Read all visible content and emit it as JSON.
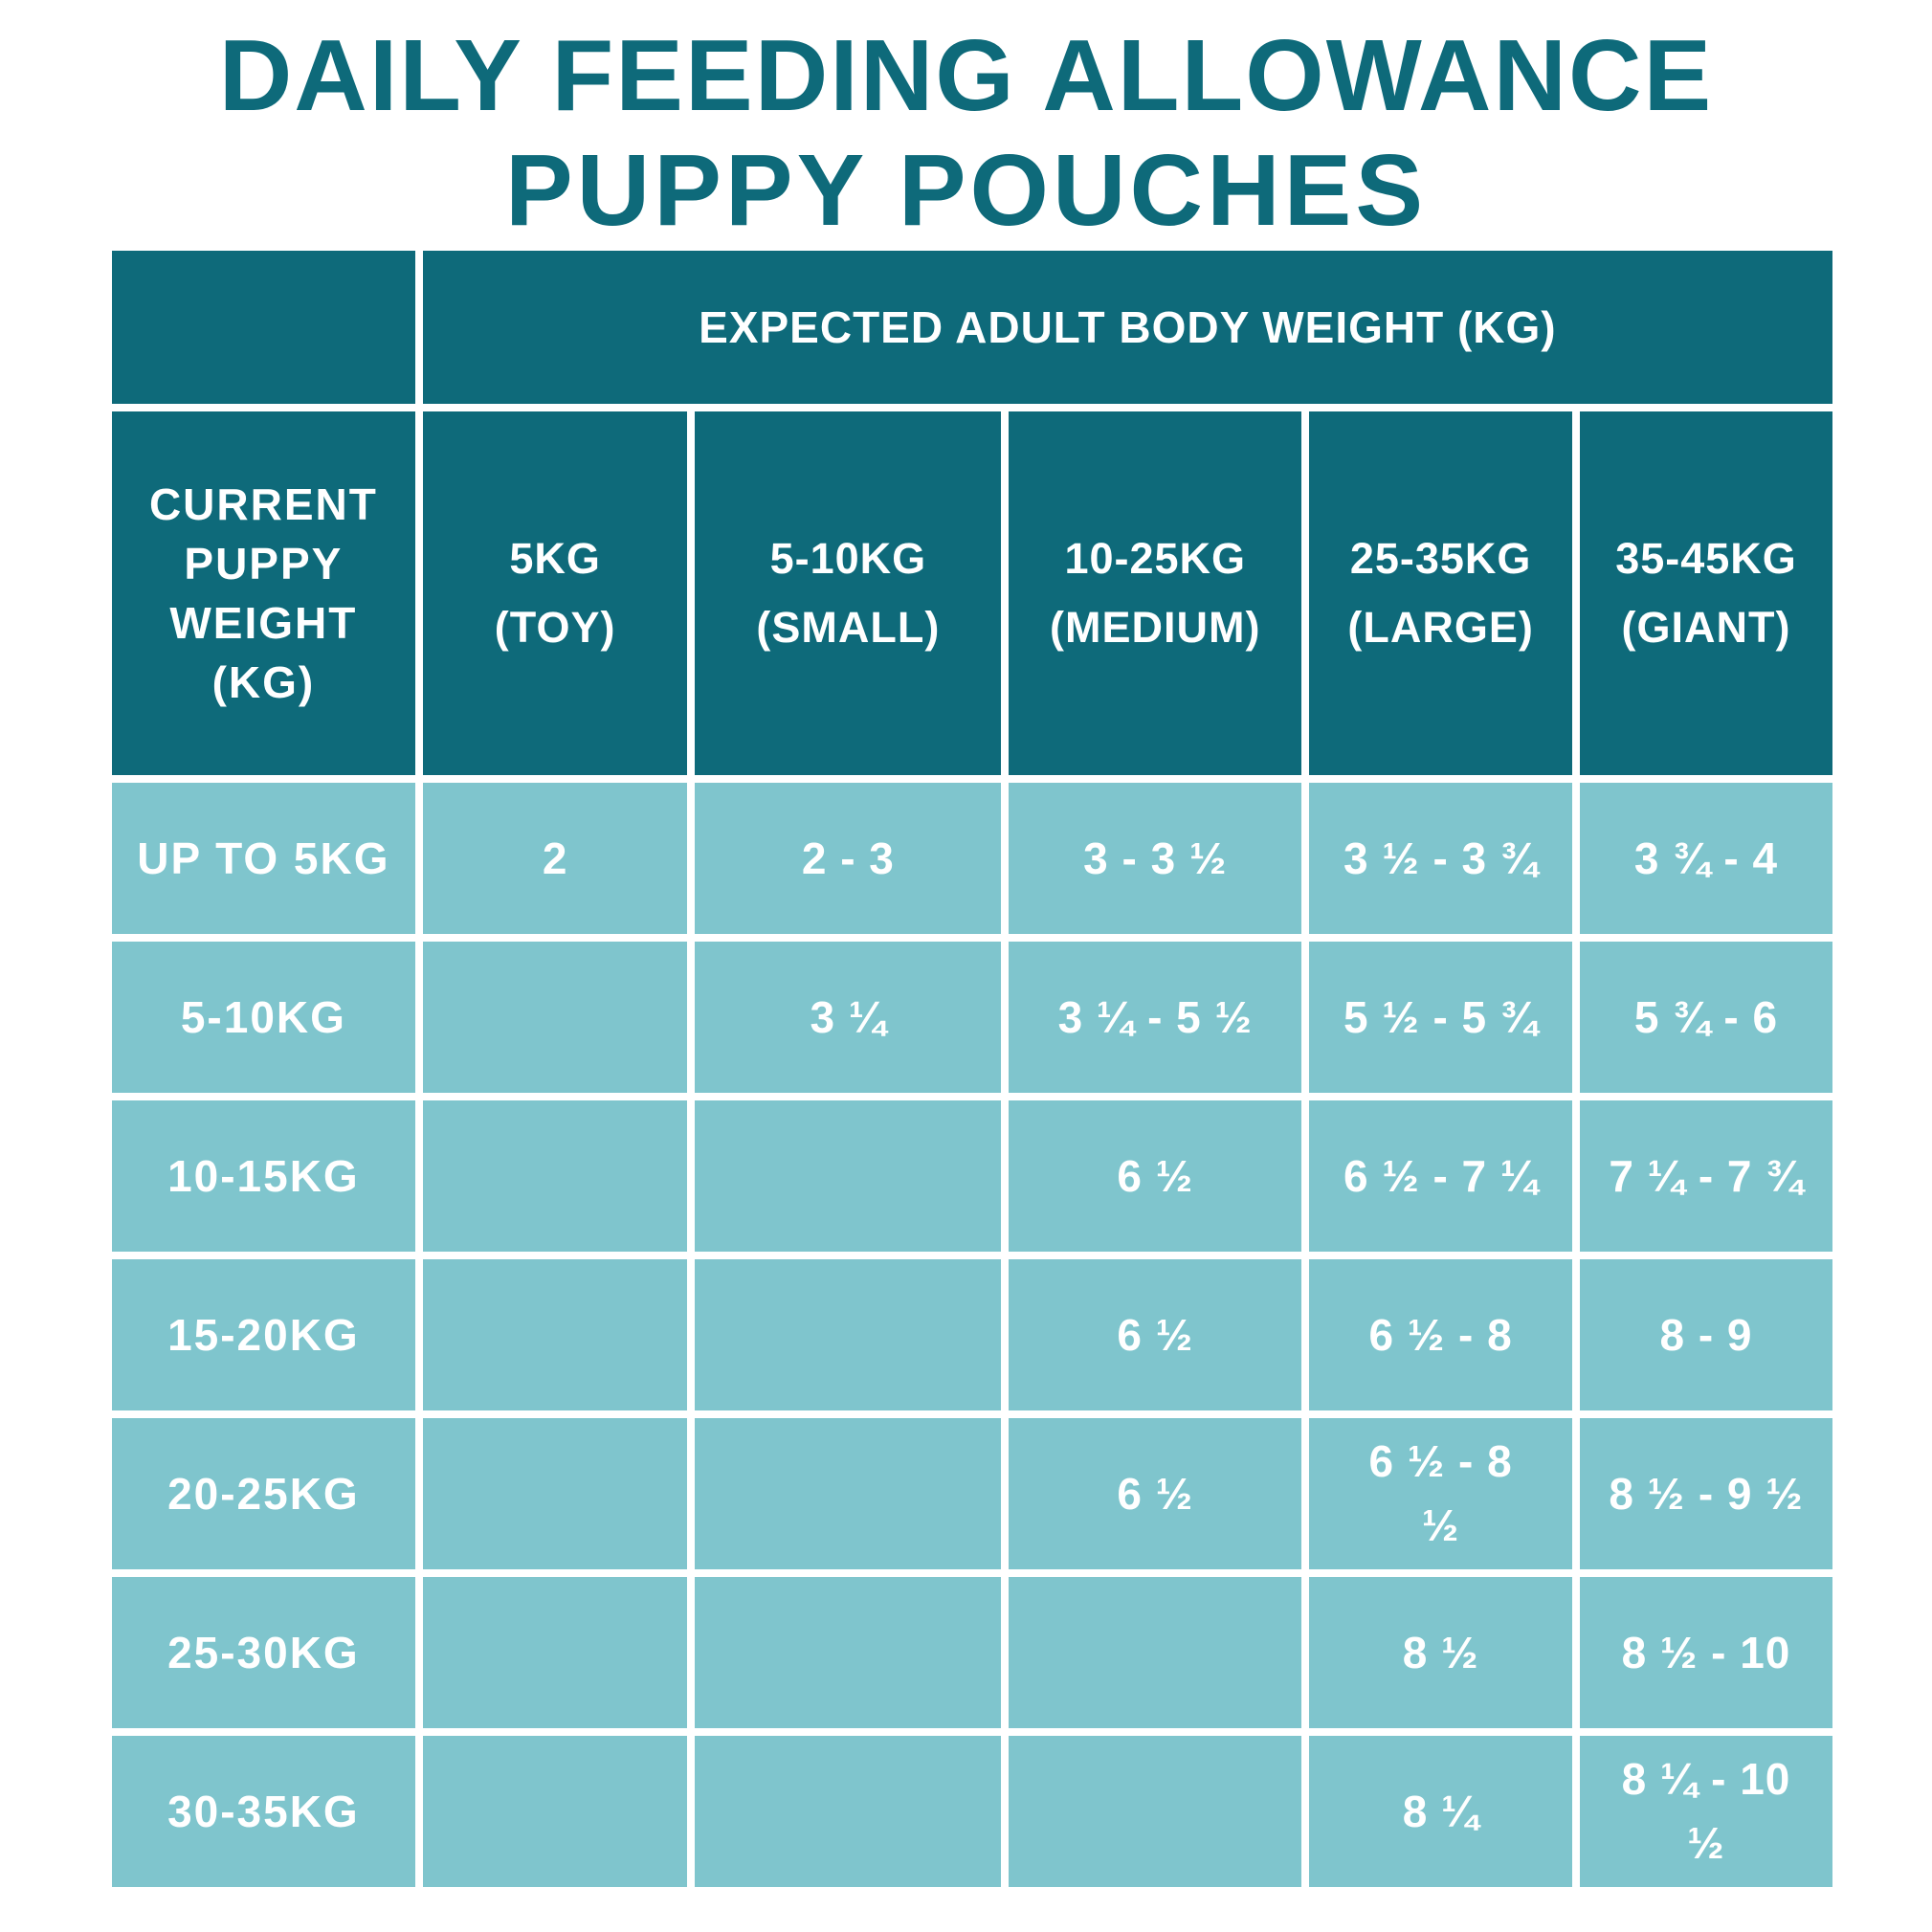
{
  "title": {
    "line1": "DAILY FEEDING ALLOWANCE",
    "line2": "PUPPY POUCHES"
  },
  "colors": {
    "dark_teal": "#0E6A7A",
    "light_teal": "#7FC5CD",
    "text_on_teal": "#FFFFFF",
    "background": "#FFFFFF"
  },
  "table": {
    "span_header": "EXPECTED ADULT BODY WEIGHT (KG)",
    "row_header_title": "CURRENT PUPPY WEIGHT (KG)",
    "columns": [
      {
        "label": "5KG",
        "sublabel": "(TOY)"
      },
      {
        "label": "5-10KG",
        "sublabel": "(SMALL)"
      },
      {
        "label": "10-25KG",
        "sublabel": "(MEDIUM)"
      },
      {
        "label": "25-35KG",
        "sublabel": "(LARGE)"
      },
      {
        "label": "35-45KG",
        "sublabel": "(GIANT)"
      }
    ],
    "rows": [
      {
        "label": "UP TO 5KG",
        "values": [
          "2",
          "2 - 3",
          "3 - 3 ½",
          "3 ½ - 3 ¾",
          "3 ¾ - 4"
        ]
      },
      {
        "label": "5-10KG",
        "values": [
          "",
          "3 ¼",
          "3 ¼  - 5 ½",
          "5 ½ - 5 ¾",
          "5 ¾ - 6"
        ]
      },
      {
        "label": "10-15KG",
        "values": [
          "",
          "",
          "6 ½",
          "6 ½ - 7 ¼",
          "7 ¼ - 7 ¾"
        ]
      },
      {
        "label": "15-20KG",
        "values": [
          "",
          "",
          "6 ½",
          "6 ½  - 8",
          "8 - 9"
        ]
      },
      {
        "label": "20-25KG",
        "values": [
          "",
          "",
          "6 ½",
          "6 ½  - 8\n½",
          "8 ½ - 9 ½"
        ]
      },
      {
        "label": "25-30KG",
        "values": [
          "",
          "",
          "",
          "8 ½",
          "8 ½ - 10"
        ]
      },
      {
        "label": "30-35KG",
        "values": [
          "",
          "",
          "",
          "8 ¼",
          "8 ¼  - 10\n½"
        ]
      }
    ]
  },
  "chart_data": {
    "type": "table",
    "title": "DAILY FEEDING ALLOWANCE PUPPY POUCHES",
    "column_group_header": "EXPECTED ADULT BODY WEIGHT (KG)",
    "columns": [
      "CURRENT PUPPY WEIGHT (KG)",
      "5KG (TOY)",
      "5-10KG (SMALL)",
      "10-25KG (MEDIUM)",
      "25-35KG (LARGE)",
      "35-45KG (GIANT)"
    ],
    "rows": [
      [
        "UP TO 5KG",
        "2",
        "2 - 3",
        "3 - 3 ½",
        "3 ½ - 3 ¾",
        "3 ¾ - 4"
      ],
      [
        "5-10KG",
        "",
        "3 ¼",
        "3 ¼ - 5 ½",
        "5 ½ - 5 ¾",
        "5 ¾ - 6"
      ],
      [
        "10-15KG",
        "",
        "",
        "6 ½",
        "6 ½ - 7 ¼",
        "7 ¼ - 7 ¾"
      ],
      [
        "15-20KG",
        "",
        "",
        "6 ½",
        "6 ½ - 8",
        "8 - 9"
      ],
      [
        "20-25KG",
        "",
        "",
        "6 ½",
        "6 ½ - 8 ½",
        "8 ½ - 9 ½"
      ],
      [
        "25-30KG",
        "",
        "",
        "",
        "8 ½",
        "8 ½ - 10"
      ],
      [
        "30-35KG",
        "",
        "",
        "",
        "8 ¼",
        "8 ¼ - 10 ½"
      ]
    ]
  }
}
